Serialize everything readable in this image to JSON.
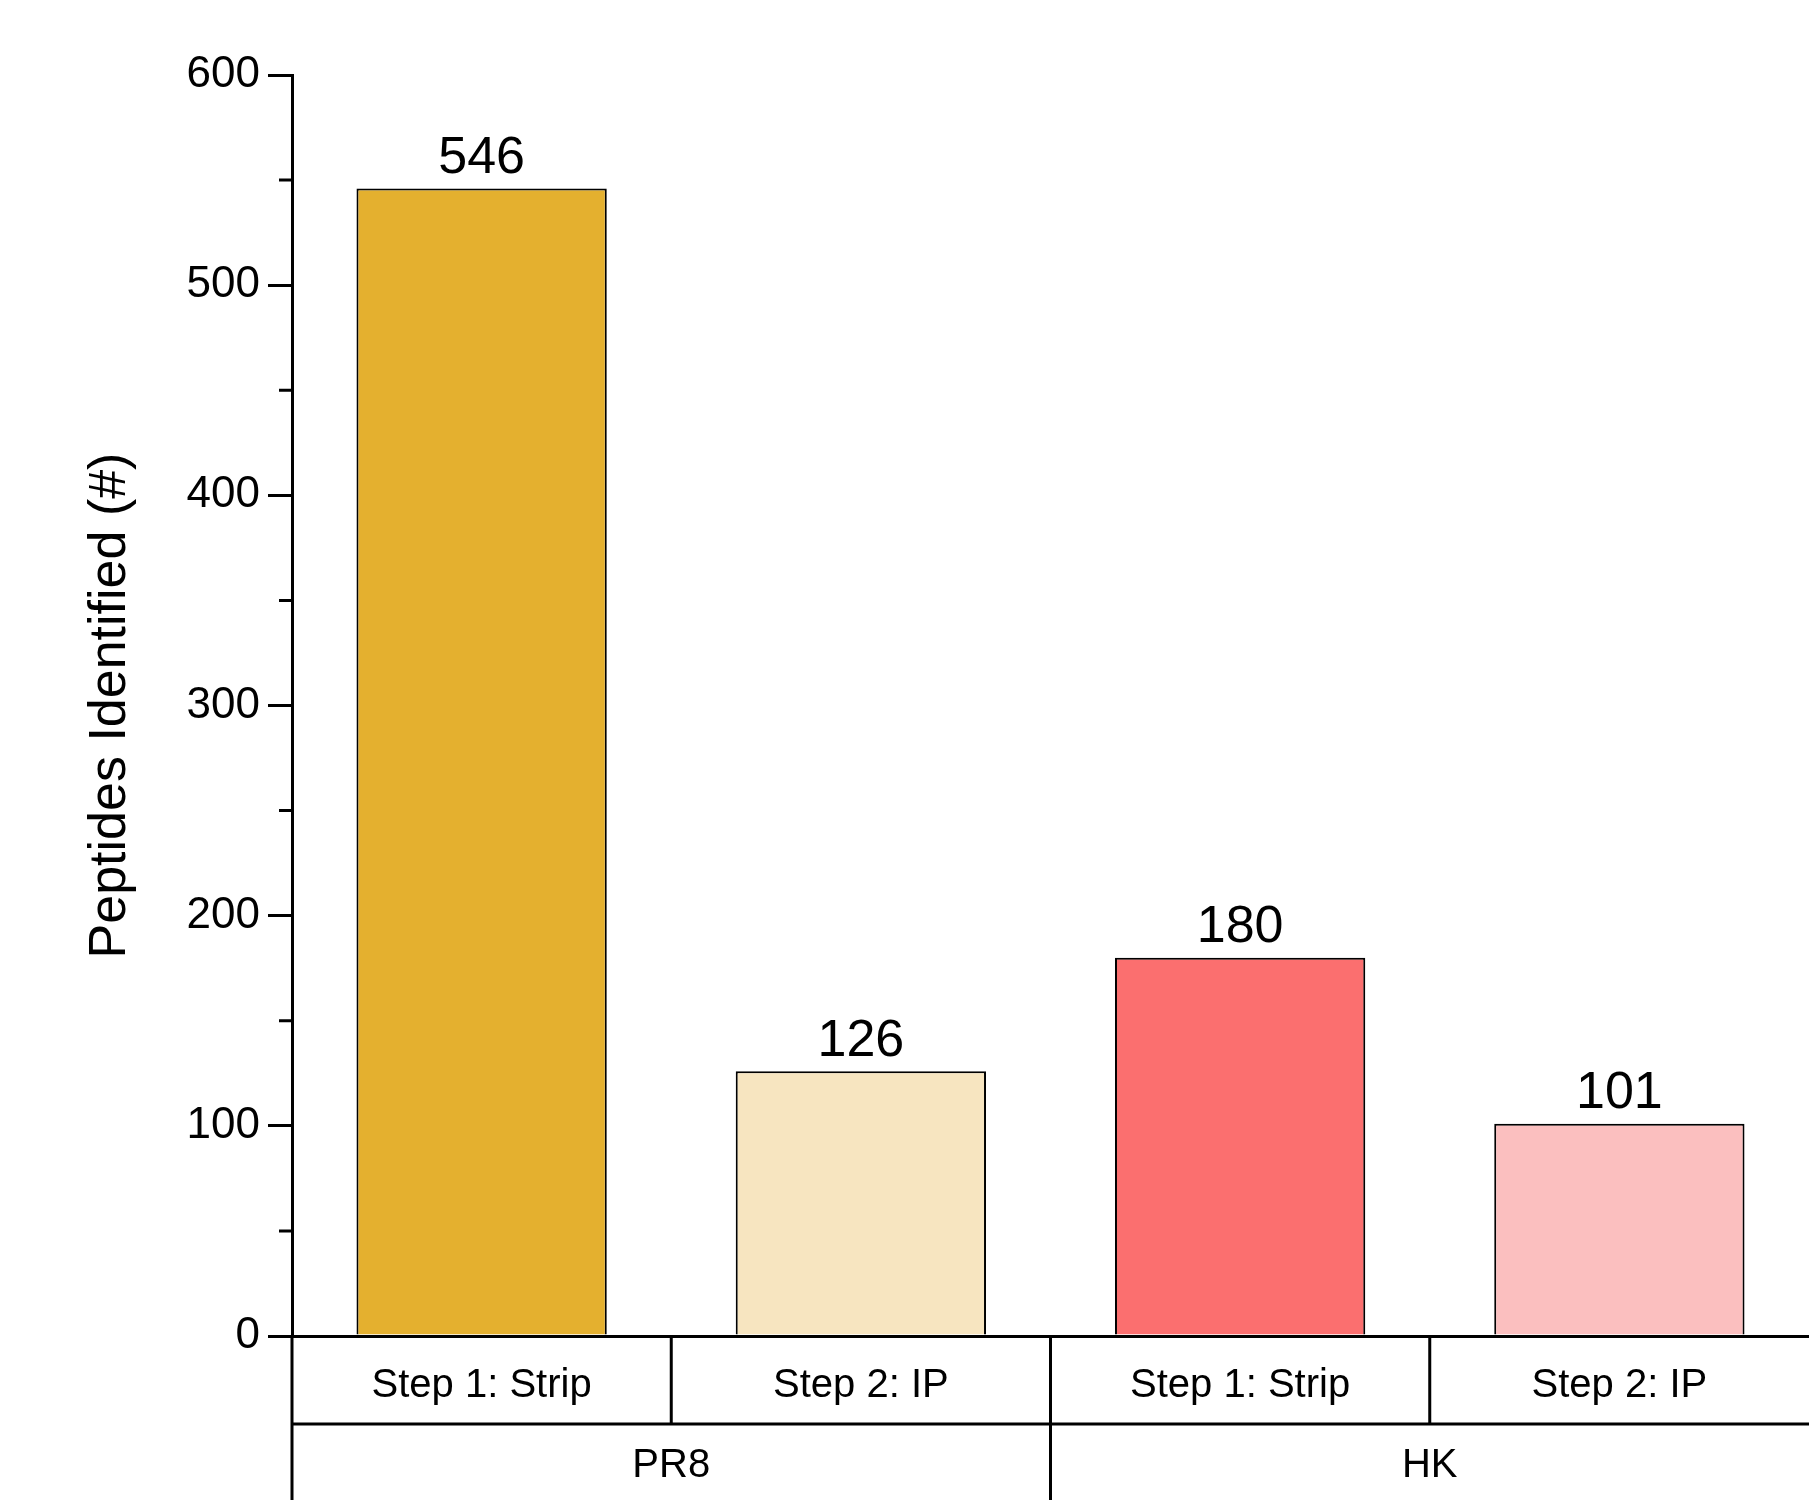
{
  "chart_data": {
    "type": "bar",
    "ylabel": "Peptides Identified (#)",
    "categories": [
      "Step 1: Strip",
      "Step 2: IP",
      "Step 1: Strip",
      "Step 2: IP"
    ],
    "values": [
      546,
      126,
      180,
      101
    ],
    "colors": [
      "#e4b02f",
      "#f7e5c0",
      "#fb6f6f",
      "#fbbfbf"
    ],
    "ylim": [
      0,
      600
    ],
    "yticks": [
      0,
      {
        "value": 50,
        "label": null
      },
      100,
      {
        "value": 150,
        "label": null
      },
      200,
      {
        "value": 250,
        "label": null
      },
      300,
      {
        "value": 350,
        "label": null
      },
      400,
      {
        "value": 450,
        "label": null
      },
      500,
      {
        "value": 550,
        "label": null
      },
      600
    ],
    "data_labels": true,
    "grid": false,
    "legend": false,
    "annotations": [
      "PR8",
      "HK"
    ]
  }
}
